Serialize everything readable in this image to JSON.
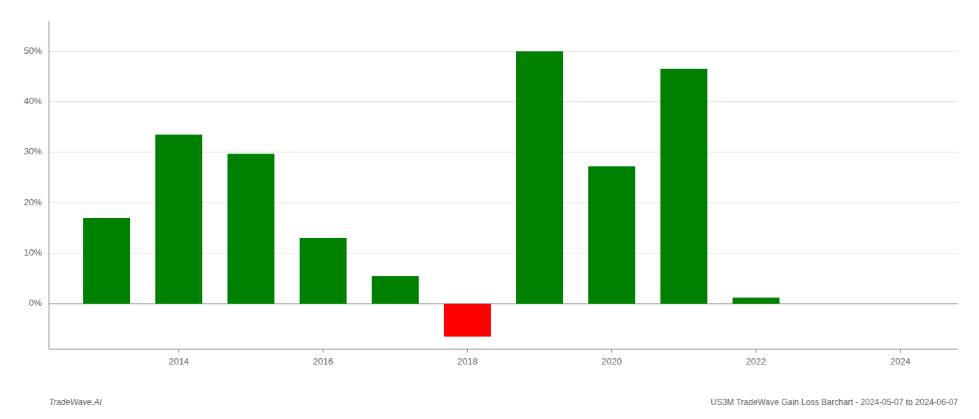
{
  "chart_data": {
    "type": "bar",
    "title": "US3M TradeWave Gain Loss Barchart - 2024-05-07 to 2024-06-07",
    "annotations": [
      "TradeWave.AI"
    ],
    "x": [
      2013,
      2014,
      2015,
      2016,
      2017,
      2018,
      2019,
      2020,
      2021,
      2022,
      2023
    ],
    "values": [
      0.17,
      0.335,
      0.297,
      0.13,
      0.055,
      -0.065,
      0.5,
      0.272,
      0.465,
      0.012,
      0.0
    ],
    "colors": [
      "#008000",
      "#008000",
      "#008000",
      "#008000",
      "#008000",
      "#ff0000",
      "#008000",
      "#008000",
      "#008000",
      "#008000",
      "#008000"
    ],
    "xlim": [
      2012.2,
      2024.8
    ],
    "ylim": [
      -0.09,
      0.56
    ],
    "xticks": [
      2014,
      2016,
      2018,
      2020,
      2022,
      2024
    ],
    "yticks": [
      {
        "value": 0.0,
        "label": "0%"
      },
      {
        "value": 0.1,
        "label": "10%"
      },
      {
        "value": 0.2,
        "label": "20%"
      },
      {
        "value": 0.3,
        "label": "30%"
      },
      {
        "value": 0.4,
        "label": "40%"
      },
      {
        "value": 0.5,
        "label": "50%"
      }
    ],
    "grid": true
  }
}
